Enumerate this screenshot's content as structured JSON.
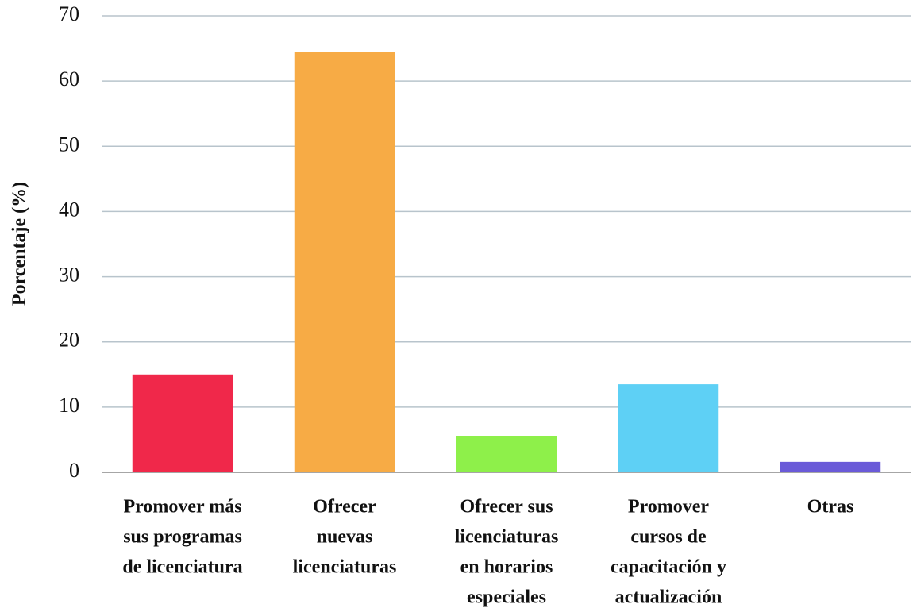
{
  "chart_data": {
    "type": "bar",
    "y_label": "Porcentaje (%)",
    "categories": [
      [
        "Promover más",
        "sus programas",
        "de licenciatura"
      ],
      [
        "Ofrecer",
        "nuevas",
        "licenciaturas"
      ],
      [
        "Ofrecer sus",
        "licenciaturas",
        "en horarios",
        "especiales"
      ],
      [
        "Promover",
        "cursos de",
        "capacitación y",
        "actualización"
      ],
      [
        "Otras"
      ]
    ],
    "values": [
      15.0,
      64.4,
      5.6,
      13.5,
      1.6
    ],
    "colors": [
      "#f0284a",
      "#f7ab45",
      "#8ef04a",
      "#5ed0f5",
      "#6a5ad8"
    ],
    "ylim": [
      0,
      70
    ],
    "yticks": [
      0,
      10,
      20,
      30,
      40,
      50,
      60,
      70
    ],
    "grid": true
  }
}
